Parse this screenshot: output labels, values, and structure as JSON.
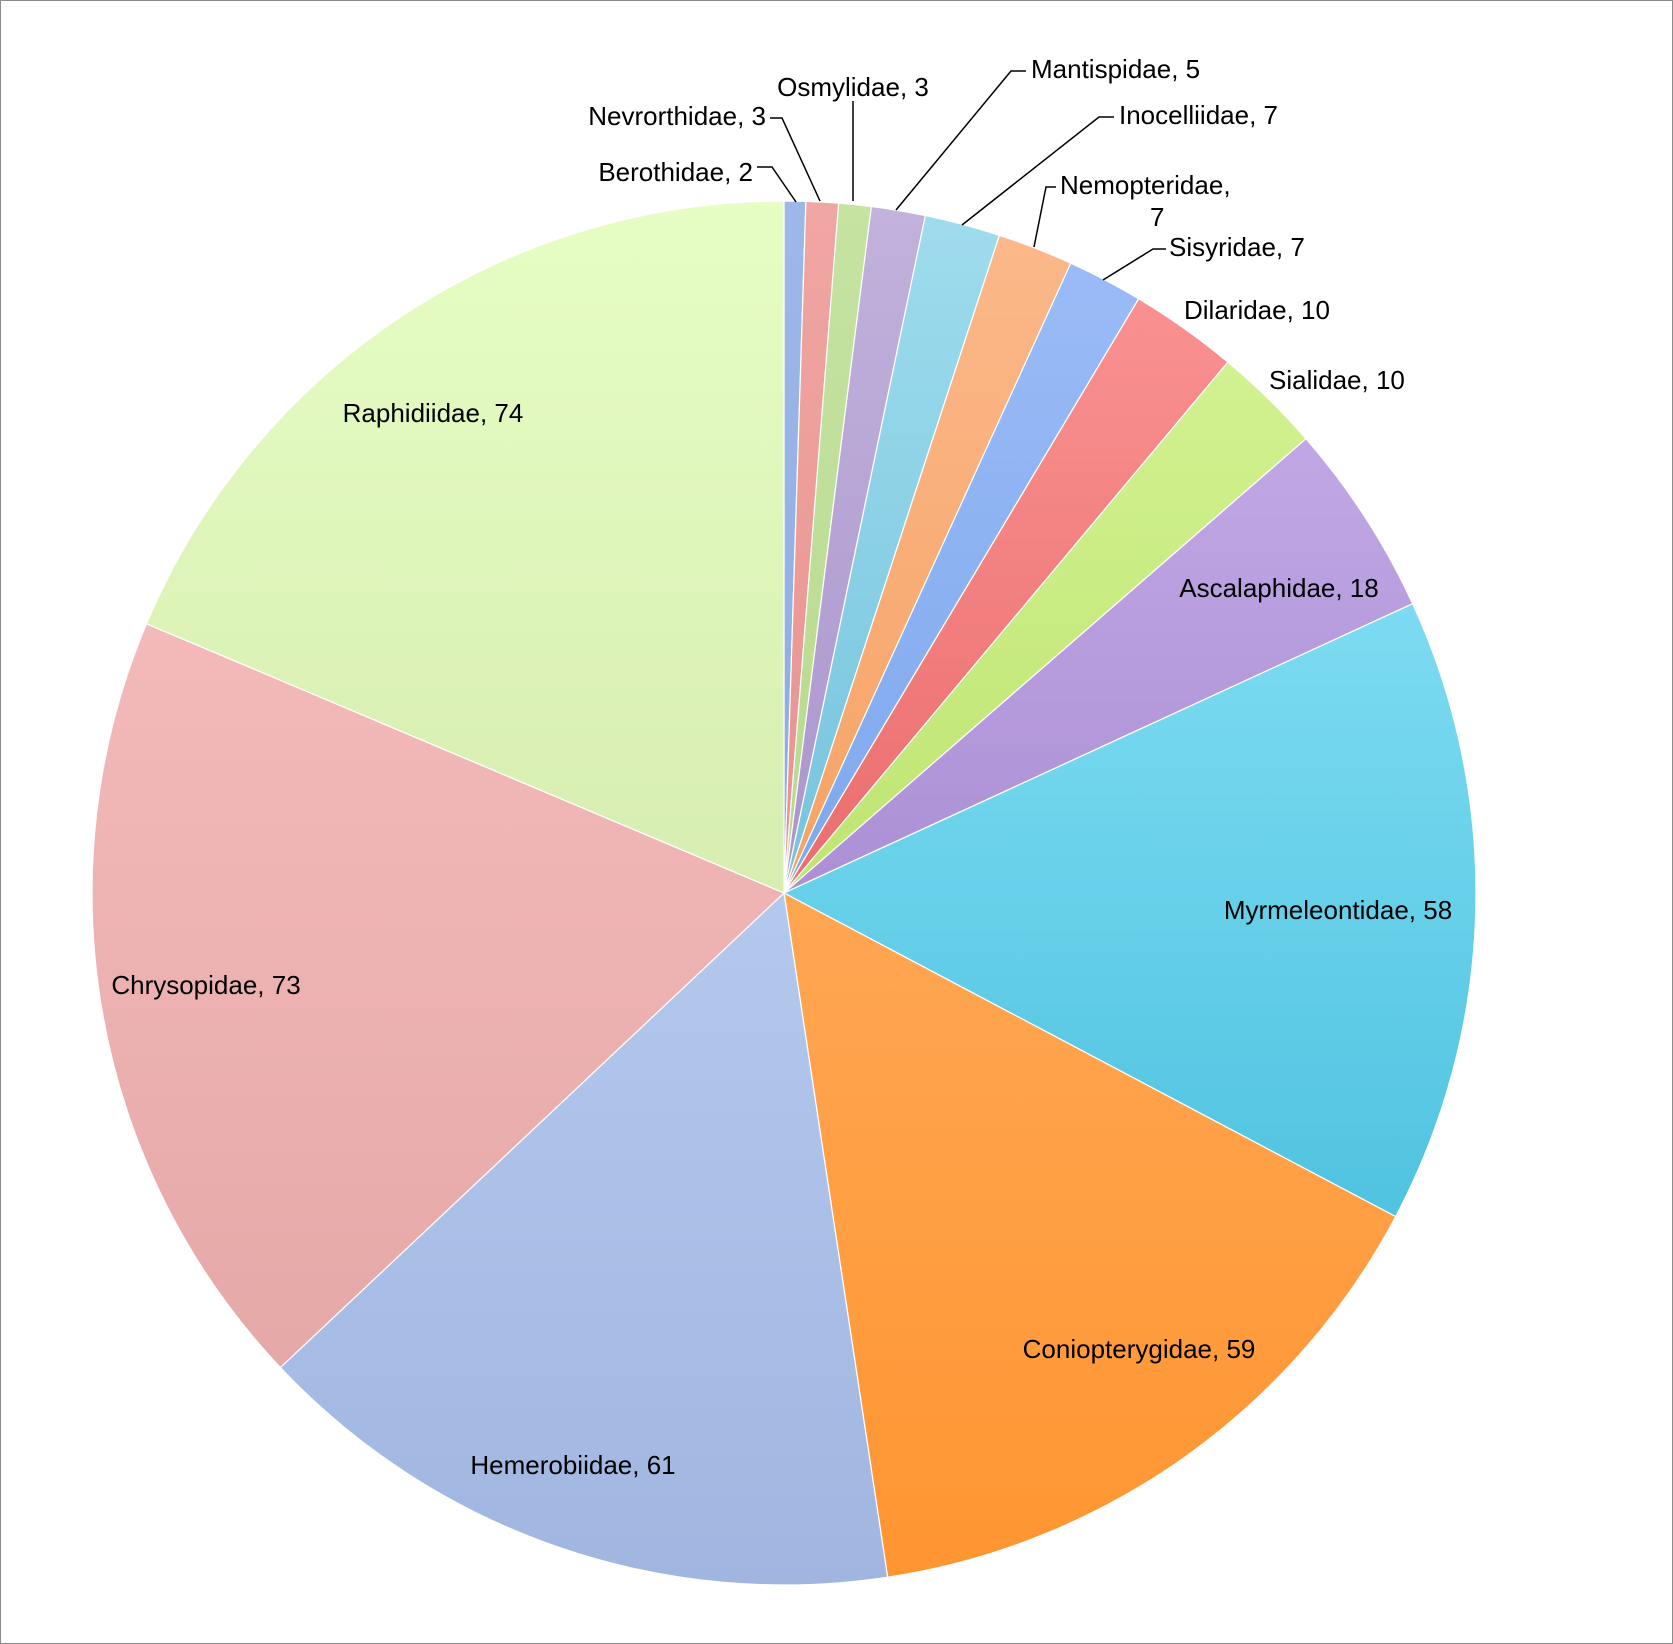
{
  "chart_data": {
    "type": "pie",
    "title": "",
    "legend": "none",
    "data_labels": "category, value",
    "start_angle_deg": 0,
    "direction": "clockwise",
    "slices": [
      {
        "label": "Berothidae, 2",
        "name": "Berothidae",
        "value": 2,
        "color": "#9db8e8",
        "color_dark": "#7f9fd9"
      },
      {
        "label": "Nevrorthidae, 3",
        "name": "Nevrorthidae",
        "value": 3,
        "color": "#f0a6a3",
        "color_dark": "#e07f7a"
      },
      {
        "label": "Osmylidae, 3",
        "name": "Osmylidae",
        "value": 3,
        "color": "#c6e3a2",
        "color_dark": "#a9d07a"
      },
      {
        "label": "Mantispidae, 5",
        "name": "Mantispidae",
        "value": 5,
        "color": "#c2b2dc",
        "color_dark": "#9378be"
      },
      {
        "label": "Inocelliidae, 7",
        "name": "Inocelliidae",
        "value": 7,
        "color": "#a0dcee",
        "color_dark": "#4aaccb"
      },
      {
        "label": "Nemopteridae,|7",
        "name": "Nemopteridae",
        "value": 7,
        "color": "#fcb98c",
        "color_dark": "#ef8d3d"
      },
      {
        "label": "Sisyridae, 7",
        "name": "Sisyridae",
        "value": 7,
        "color": "#9dbdf7",
        "color_dark": "#5f93e3"
      },
      {
        "label": "Dilaridae, 10",
        "name": "Dilaridae",
        "value": 10,
        "color": "#fc9797",
        "color_dark": "#d94444"
      },
      {
        "label": "Sialidae, 10",
        "name": "Sialidae",
        "value": 10,
        "color": "#d8f59a",
        "color_dark": "#a5d44a"
      },
      {
        "label": "Ascalaphidae, 18",
        "name": "Ascalaphidae",
        "value": 18,
        "color": "#cbb4ec",
        "color_dark": "#8d6bbf"
      },
      {
        "label": "Myrmeleontidae, 58",
        "name": "Myrmeleontidae",
        "value": 58,
        "color": "#9aebfd",
        "color_dark": "#35b5d6"
      },
      {
        "label": "Coniopterygidae, 59",
        "name": "Coniopterygidae",
        "value": 59,
        "color": "#ffb877",
        "color_dark": "#ff9530"
      },
      {
        "label": "Hemerobiidae, 61",
        "name": "Hemerobiidae",
        "value": 61,
        "color": "#c9dbfb",
        "color_dark": "#a0b6e0"
      },
      {
        "label": "Chrysopidae, 73",
        "name": "Chrysopidae",
        "value": 73,
        "color": "#fcc4c4",
        "color_dark": "#e0a3a2"
      },
      {
        "label": "Raphidiidae, 74",
        "name": "Raphidiidae",
        "value": 74,
        "color": "#e6fdc4",
        "color_dark": "#c8dd9e"
      }
    ]
  }
}
